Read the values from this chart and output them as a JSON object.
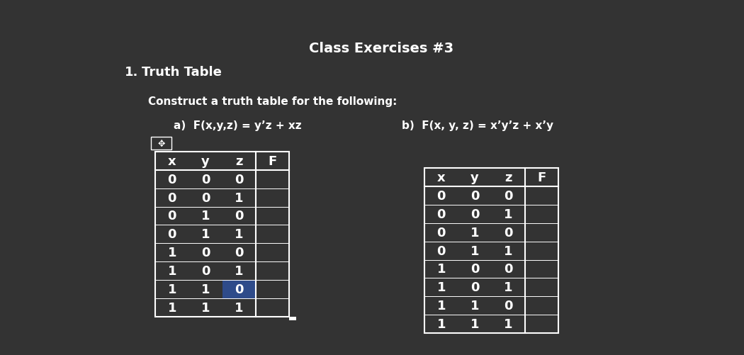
{
  "bg_color": "#333333",
  "text_color": "#ffffff",
  "table_a_headers": [
    "x",
    "y",
    "z",
    "F"
  ],
  "table_a_data": [
    [
      "0",
      "0",
      "0",
      ""
    ],
    [
      "0",
      "0",
      "1",
      ""
    ],
    [
      "0",
      "1",
      "0",
      ""
    ],
    [
      "0",
      "1",
      "1",
      ""
    ],
    [
      "1",
      "0",
      "0",
      ""
    ],
    [
      "1",
      "0",
      "1",
      ""
    ],
    [
      "1",
      "1",
      "0",
      ""
    ],
    [
      "1",
      "1",
      "1",
      ""
    ]
  ],
  "highlight_row_a": 6,
  "highlight_col_a": 2,
  "highlight_color_a": "#2e4b8a",
  "highlight_value_a": "0",
  "table_b_headers": [
    "x",
    "y",
    "z",
    "F"
  ],
  "table_b_data": [
    [
      "0",
      "0",
      "0",
      ""
    ],
    [
      "0",
      "0",
      "1",
      ""
    ],
    [
      "0",
      "1",
      "0",
      ""
    ],
    [
      "0",
      "1",
      "1",
      ""
    ],
    [
      "1",
      "0",
      "0",
      ""
    ],
    [
      "1",
      "0",
      "1",
      ""
    ],
    [
      "1",
      "1",
      "0",
      ""
    ],
    [
      "1",
      "1",
      "1",
      ""
    ]
  ],
  "font_size_header": 13,
  "font_size_body": 13,
  "font_size_title": 13,
  "font_size_label": 11
}
